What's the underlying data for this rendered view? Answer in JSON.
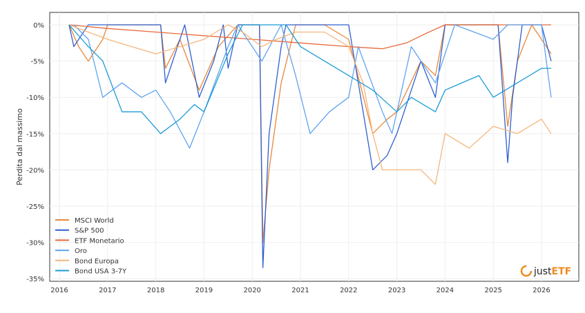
{
  "chart_data": {
    "type": "line",
    "title": "",
    "xlabel": "",
    "ylabel": "Perdita dal massimo",
    "xlim": [
      2015.8,
      2026.8
    ],
    "ylim": [
      -35.5,
      1.5
    ],
    "grid": true,
    "legend_position": "bottom-left",
    "x_ticks": [
      "2016",
      "2017",
      "2018",
      "2019",
      "2020",
      "2021",
      "2022",
      "2023",
      "2024",
      "2025",
      "2026"
    ],
    "y_ticks": [
      "0%",
      "-5%",
      "-10%",
      "-15%",
      "-20%",
      "-25%",
      "-30%",
      "-35%"
    ],
    "series": [
      {
        "name": "MSCI World",
        "color": "#e8873a",
        "x": [
          2016.2,
          2016.4,
          2016.6,
          2016.9,
          2017.0,
          2018.1,
          2018.2,
          2018.5,
          2018.9,
          2019.3,
          2019.7,
          2020.15,
          2020.22,
          2020.35,
          2020.6,
          2020.9,
          2021.5,
          2022.0,
          2022.5,
          2022.8,
          2023.0,
          2023.5,
          2023.8,
          2024.0,
          2025.1,
          2025.3,
          2025.5,
          2025.8,
          2026.2
        ],
        "y": [
          0,
          -3,
          -5,
          -2,
          0,
          0,
          -6,
          -2,
          -9,
          -3,
          0,
          0,
          -30,
          -20,
          -8,
          0,
          0,
          -2,
          -15,
          -13,
          -12,
          -5,
          -7,
          0,
          0,
          -14,
          -5,
          0,
          -4
        ]
      },
      {
        "name": "S&P 500",
        "color": "#2f5fd0",
        "x": [
          2016.2,
          2016.3,
          2016.6,
          2018.1,
          2018.2,
          2018.6,
          2018.9,
          2019.2,
          2019.4,
          2019.5,
          2019.7,
          2020.15,
          2020.22,
          2020.35,
          2020.6,
          2020.7,
          2022.0,
          2022.5,
          2022.8,
          2023.0,
          2023.5,
          2023.8,
          2024.0,
          2025.1,
          2025.3,
          2025.4,
          2025.6,
          2026.0,
          2026.2
        ],
        "y": [
          0,
          -3,
          0,
          0,
          -8,
          0,
          -10,
          -5,
          0,
          -6,
          0,
          0,
          -33.5,
          -15,
          -3,
          0,
          0,
          -20,
          -18,
          -15,
          -5,
          -10,
          0,
          0,
          -19,
          -10,
          0,
          0,
          -5
        ]
      },
      {
        "name": "ETF Monetario",
        "color": "#e8693a",
        "x": [
          2016.2,
          2017.0,
          2018.0,
          2019.0,
          2020.0,
          2021.0,
          2022.0,
          2022.7,
          2023.2,
          2023.6,
          2024.0,
          2025.0,
          2026.2
        ],
        "y": [
          0,
          -0.5,
          -1,
          -1.5,
          -2,
          -2.5,
          -3,
          -3.3,
          -2.5,
          -1.2,
          0,
          0,
          0
        ]
      },
      {
        "name": "Oro",
        "color": "#5fa3f0",
        "x": [
          2016.3,
          2016.6,
          2016.9,
          2017.3,
          2017.7,
          2018.0,
          2018.3,
          2018.7,
          2019.0,
          2019.5,
          2019.7,
          2020.0,
          2020.2,
          2020.6,
          2020.9,
          2021.2,
          2021.6,
          2022.0,
          2022.2,
          2022.7,
          2022.9,
          2023.3,
          2023.8,
          2024.2,
          2025.0,
          2025.3,
          2026.0,
          2026.2
        ],
        "y": [
          0,
          -2,
          -10,
          -8,
          -10,
          -9,
          -12,
          -17,
          -12,
          -3,
          0,
          -3,
          -5,
          0,
          -7,
          -15,
          -12,
          -10,
          -3,
          -12,
          -15,
          -3,
          -8,
          0,
          -2,
          0,
          0,
          -10
        ]
      },
      {
        "name": "Bond Europa",
        "color": "#f5b57a",
        "x": [
          2016.2,
          2017.0,
          2017.5,
          2018.0,
          2018.5,
          2019.0,
          2019.5,
          2019.8,
          2020.2,
          2020.5,
          2020.9,
          2021.5,
          2022.0,
          2022.3,
          2022.5,
          2022.7,
          2023.0,
          2023.5,
          2023.8,
          2024.0,
          2024.5,
          2025.0,
          2025.5,
          2026.0,
          2026.2
        ],
        "y": [
          0,
          -2,
          -3,
          -4,
          -3,
          -2,
          0,
          -1,
          -3,
          -2,
          -1,
          -1,
          -3,
          -8,
          -15,
          -20,
          -20,
          -20,
          -22,
          -15,
          -17,
          -14,
          -15,
          -13,
          -15
        ]
      },
      {
        "name": "Bond USA 3-7Y",
        "color": "#1a9bd7",
        "x": [
          2016.2,
          2016.6,
          2016.9,
          2017.3,
          2017.7,
          2018.1,
          2018.5,
          2018.8,
          2019.0,
          2019.5,
          2019.8,
          2020.7,
          2021.0,
          2021.5,
          2022.0,
          2022.5,
          2023.0,
          2023.3,
          2023.8,
          2024.0,
          2024.7,
          2025.0,
          2025.5,
          2026.0,
          2026.2
        ],
        "y": [
          0,
          -3,
          -5,
          -12,
          -12,
          -15,
          -13,
          -11,
          -12,
          -4,
          0,
          0,
          -3,
          -5,
          -7,
          -9,
          -12,
          -10,
          -12,
          -9,
          -7,
          -10,
          -8,
          -6,
          -6
        ]
      }
    ]
  },
  "branding": {
    "logo_text": "justETF"
  }
}
